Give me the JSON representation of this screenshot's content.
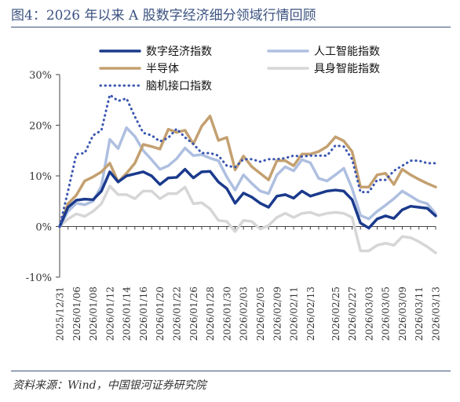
{
  "figure": {
    "title": "图4：2026 年以来 A 股数字经济细分领域行情回顾",
    "source": "资料来源：Wind，中国银河证券研究院"
  },
  "colors": {
    "header": "#3b5280",
    "axis": "#444444"
  },
  "chart_data": {
    "type": "line",
    "ylim": [
      -10,
      30
    ],
    "yticks": [
      -10,
      0,
      10,
      20,
      30
    ],
    "ytick_labels": [
      "-10%",
      "0%",
      "10%",
      "20%",
      "30%"
    ],
    "grid": false,
    "legend_position": "top, two columns",
    "x": [
      "2025/12/31",
      "2026/01/05",
      "2026/01/06",
      "2026/01/07",
      "2026/01/08",
      "2026/01/09",
      "2026/01/12",
      "2026/01/13",
      "2026/01/14",
      "2026/01/15",
      "2026/01/16",
      "2026/01/19",
      "2026/01/20",
      "2026/01/21",
      "2026/01/22",
      "2026/01/23",
      "2026/01/26",
      "2026/01/27",
      "2026/01/28",
      "2026/01/29",
      "2026/01/30",
      "2026/02/02",
      "2026/02/03",
      "2026/02/04",
      "2026/02/05",
      "2026/02/06",
      "2026/02/09",
      "2026/02/10",
      "2026/02/11",
      "2026/02/12",
      "2026/02/13",
      "2026/02/16",
      "2026/02/24",
      "2026/02/25",
      "2026/02/26",
      "2026/02/27",
      "2026/03/02",
      "2026/03/03",
      "2026/03/04",
      "2026/03/05",
      "2026/03/06",
      "2026/03/09",
      "2026/03/10",
      "2026/03/11",
      "2026/03/12",
      "2026/03/13"
    ],
    "x_tick_labels": [
      "2025/12/31",
      "2026/01/06",
      "2026/01/08",
      "2026/01/12",
      "2026/01/14",
      "2026/01/16",
      "2026/01/20",
      "2026/01/22",
      "2026/01/26",
      "2026/01/28",
      "2026/01/30",
      "2026/02/03",
      "2026/02/05",
      "2026/02/09",
      "2026/02/11",
      "2026/02/13",
      "2026/02/25",
      "2026/02/27",
      "2026/03/03",
      "2026/03/05",
      "2026/03/09",
      "2026/03/11",
      "2026/03/13"
    ],
    "series": [
      {
        "name": "数字经济指数",
        "color": "#1a3a8c",
        "width": 3.5,
        "dash": "",
        "values": [
          0,
          3.8,
          5.2,
          5.4,
          5.3,
          7.0,
          10.8,
          8.8,
          10.0,
          10.4,
          10.8,
          10.0,
          8.3,
          9.6,
          9.7,
          11.3,
          9.6,
          10.8,
          10.9,
          8.8,
          7.5,
          4.6,
          6.6,
          5.8,
          4.6,
          3.8,
          6.0,
          6.3,
          5.6,
          7.0,
          6.0,
          6.5,
          7.0,
          7.2,
          7.0,
          5.3,
          0.7,
          -0.3,
          1.5,
          2.1,
          1.6,
          3.3,
          4.0,
          3.8,
          3.6,
          2.1
        ]
      },
      {
        "name": "人工智能指数",
        "color": "#aebfe0",
        "width": 3.5,
        "dash": "",
        "values": [
          0,
          3.0,
          4.6,
          4.3,
          5.0,
          8.0,
          17.2,
          15.4,
          19.5,
          17.8,
          15.0,
          13.2,
          11.3,
          12.0,
          13.4,
          15.5,
          14.0,
          14.2,
          13.5,
          13.0,
          9.8,
          7.2,
          10.2,
          8.5,
          7.0,
          6.5,
          10.2,
          11.8,
          11.0,
          13.2,
          12.6,
          9.5,
          9.0,
          10.2,
          11.5,
          7.5,
          2.2,
          1.5,
          3.0,
          4.2,
          5.5,
          7.0,
          6.0,
          5.0,
          4.5,
          2.5
        ]
      },
      {
        "name": "半导体",
        "color": "#c4a070",
        "width": 3.5,
        "dash": "",
        "values": [
          0,
          4.5,
          6.2,
          9.0,
          9.8,
          10.8,
          12.5,
          8.8,
          10.5,
          12.5,
          16.2,
          15.8,
          15.3,
          19.2,
          18.6,
          19.0,
          16.3,
          19.8,
          21.8,
          17.0,
          17.6,
          11.2,
          13.9,
          11.8,
          10.5,
          9.2,
          13.0,
          13.0,
          12.0,
          14.3,
          14.3,
          14.8,
          15.8,
          17.7,
          16.9,
          14.8,
          7.8,
          7.8,
          10.2,
          10.5,
          8.3,
          11.3,
          10.2,
          9.3,
          8.5,
          7.8
        ]
      },
      {
        "name": "具身智能指数",
        "color": "#d6d6d6",
        "width": 3.5,
        "dash": "",
        "values": [
          0,
          1.5,
          2.5,
          2.0,
          3.0,
          4.5,
          8.0,
          6.3,
          6.3,
          5.5,
          7.0,
          7.0,
          5.5,
          6.5,
          6.5,
          7.8,
          4.5,
          4.7,
          3.5,
          1.2,
          1.0,
          -1.0,
          1.2,
          1.0,
          -0.5,
          0.2,
          1.8,
          2.6,
          1.8,
          2.6,
          2.8,
          2.2,
          2.6,
          2.8,
          2.6,
          1.8,
          -4.8,
          -4.8,
          -3.7,
          -3.3,
          -3.7,
          -2.0,
          -2.2,
          -3.0,
          -4.0,
          -5.2
        ]
      },
      {
        "name": "脑机接口指数",
        "color": "#3a56b0",
        "width": 3,
        "dash": "0.5 5.5",
        "values": [
          0,
          7.0,
          14.3,
          14.5,
          18.0,
          19.0,
          26.0,
          24.8,
          25.3,
          21.7,
          18.5,
          18.0,
          16.8,
          17.5,
          19.3,
          17.6,
          16.3,
          14.5,
          14.5,
          14.0,
          12.0,
          11.7,
          13.3,
          13.3,
          12.8,
          13.3,
          13.3,
          13.5,
          14.0,
          13.8,
          14.0,
          14.0,
          14.0,
          16.0,
          15.8,
          13.3,
          6.8,
          6.8,
          9.2,
          9.2,
          11.0,
          12.0,
          13.0,
          13.0,
          12.5,
          12.5
        ]
      }
    ]
  }
}
